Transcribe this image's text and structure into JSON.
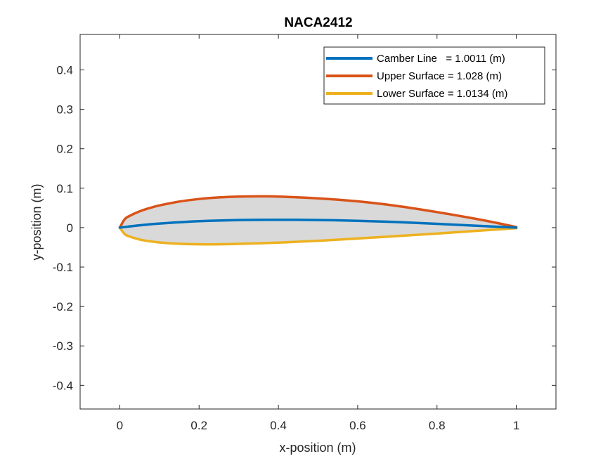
{
  "chart_data": {
    "type": "line",
    "title": "NACA2412",
    "xlabel": "x-position (m)",
    "ylabel": "y-position (m)",
    "xlim": [
      -0.1,
      1.1
    ],
    "ylim": [
      -0.46,
      0.49
    ],
    "xticks": [
      0,
      0.2,
      0.4,
      0.6,
      0.8,
      1
    ],
    "yticks": [
      -0.4,
      -0.3,
      -0.2,
      -0.1,
      0,
      0.1,
      0.2,
      0.3,
      0.4
    ],
    "xtick_labels": [
      "0",
      "0.2",
      "0.4",
      "0.6",
      "0.8",
      "1"
    ],
    "ytick_labels": [
      "-0.4",
      "-0.3",
      "-0.2",
      "-0.1",
      "0",
      "0.1",
      "0.2",
      "0.3",
      "0.4"
    ],
    "grid": false,
    "legend_position": "top-right",
    "fill_color": "#d9d9d9",
    "series": [
      {
        "name": "Camber Line   = 1.0011 (m)",
        "color": "#0072bd",
        "x": [
          0,
          0.02,
          0.05,
          0.1,
          0.2,
          0.3,
          0.4,
          0.5,
          0.6,
          0.7,
          0.8,
          0.9,
          1.0
        ],
        "y": [
          0,
          0.0024,
          0.0059,
          0.0103,
          0.0163,
          0.0193,
          0.02,
          0.0193,
          0.0173,
          0.014,
          0.0096,
          0.0048,
          0
        ]
      },
      {
        "name": "Upper Surface = 1.028 (m)",
        "color": "#d95319",
        "x": [
          0,
          0.0125,
          0.025,
          0.05,
          0.075,
          0.1,
          0.15,
          0.2,
          0.25,
          0.3,
          0.35,
          0.4,
          0.5,
          0.6,
          0.7,
          0.8,
          0.9,
          0.95,
          1.0
        ],
        "y": [
          0,
          0.0215,
          0.0299,
          0.0413,
          0.0496,
          0.0563,
          0.0661,
          0.0726,
          0.0767,
          0.0788,
          0.0794,
          0.0788,
          0.0743,
          0.0666,
          0.0549,
          0.0394,
          0.0219,
          0.0121,
          0.0013
        ]
      },
      {
        "name": "Lower Surface = 1.0134 (m)",
        "color": "#edb120",
        "x": [
          0,
          0.0125,
          0.025,
          0.05,
          0.075,
          0.1,
          0.15,
          0.2,
          0.25,
          0.3,
          0.4,
          0.5,
          0.6,
          0.7,
          0.8,
          0.9,
          0.95,
          1.0
        ],
        "y": [
          0,
          -0.0165,
          -0.0227,
          -0.0301,
          -0.0346,
          -0.0375,
          -0.041,
          -0.0423,
          -0.0422,
          -0.0412,
          -0.038,
          -0.0334,
          -0.0276,
          -0.0214,
          -0.015,
          -0.0082,
          -0.0048,
          -0.0013
        ]
      }
    ]
  }
}
